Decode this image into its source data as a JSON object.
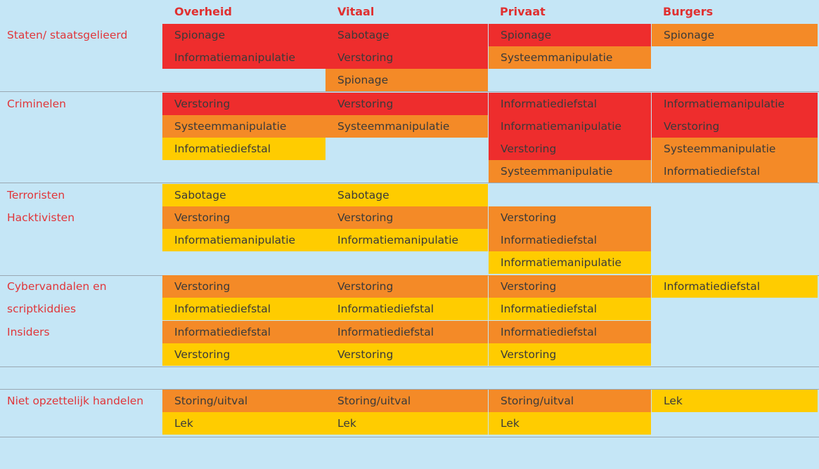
{
  "columns": [
    "Overheid",
    "Vitaal",
    "Privaat",
    "Burgers"
  ],
  "rows": [
    {
      "label": "Staten/ staatsgelieerd",
      "label_lines": [
        "Staten/ staatsgelieerd"
      ],
      "cells": [
        [
          {
            "text": "Spionage",
            "level": "red"
          },
          {
            "text": "Informatiemanipulatie",
            "level": "red"
          }
        ],
        [
          {
            "text": "Sabotage",
            "level": "red"
          },
          {
            "text": "Verstoring",
            "level": "red"
          },
          {
            "text": "Spionage",
            "level": "orange"
          }
        ],
        [
          {
            "text": "Spionage",
            "level": "red"
          },
          {
            "text": "Systeemmanipulatie",
            "level": "orange"
          }
        ],
        [
          {
            "text": "Spionage",
            "level": "orange"
          }
        ]
      ]
    },
    {
      "label": "Criminelen",
      "label_lines": [
        "Criminelen"
      ],
      "cells": [
        [
          {
            "text": "Verstoring",
            "level": "red"
          },
          {
            "text": "Systeemmanipulatie",
            "level": "orange"
          },
          {
            "text": "Informatiediefstal",
            "level": "yellow"
          }
        ],
        [
          {
            "text": "Verstoring",
            "level": "red"
          },
          {
            "text": "Systeemmanipulatie",
            "level": "orange"
          }
        ],
        [
          {
            "text": "Informatiediefstal",
            "level": "red"
          },
          {
            "text": "Informatiemanipulatie",
            "level": "red"
          },
          {
            "text": "Verstoring",
            "level": "red"
          },
          {
            "text": "Systeemmanipulatie",
            "level": "orange"
          }
        ],
        [
          {
            "text": "Informatiemanipulatie",
            "level": "red"
          },
          {
            "text": "Verstoring",
            "level": "red"
          },
          {
            "text": "Systeemmanipulatie",
            "level": "orange"
          },
          {
            "text": "Informatiediefstal",
            "level": "orange"
          }
        ]
      ]
    },
    {
      "label": "Terroristen",
      "label_lines": [
        "Terroristen"
      ],
      "cells": [
        [
          {
            "text": "Sabotage",
            "level": "yellow"
          }
        ],
        [
          {
            "text": "Sabotage",
            "level": "yellow"
          }
        ],
        [],
        []
      ]
    },
    {
      "label": "Hacktivisten",
      "label_lines": [
        "Hacktivisten"
      ],
      "cells": [
        [
          {
            "text": "Verstoring",
            "level": "orange"
          },
          {
            "text": "Informatiemanipulatie",
            "level": "yellow"
          }
        ],
        [
          {
            "text": "Verstoring",
            "level": "orange"
          },
          {
            "text": "Informatiemanipulatie",
            "level": "yellow"
          }
        ],
        [
          {
            "text": "Verstoring",
            "level": "orange"
          },
          {
            "text": "Informatiediefstal",
            "level": "orange"
          },
          {
            "text": "Informatiemanipulatie",
            "level": "yellow"
          }
        ],
        []
      ]
    },
    {
      "label": "Cybervandalen en scriptkiddies",
      "label_lines": [
        "Cybervandalen en",
        "scriptkiddies"
      ],
      "cells": [
        [
          {
            "text": "Verstoring",
            "level": "orange"
          },
          {
            "text": "Informatiediefstal",
            "level": "yellow"
          }
        ],
        [
          {
            "text": "Verstoring",
            "level": "orange"
          },
          {
            "text": "Informatiediefstal",
            "level": "yellow"
          }
        ],
        [
          {
            "text": "Verstoring",
            "level": "orange"
          },
          {
            "text": "Informatiediefstal",
            "level": "yellow"
          }
        ],
        [
          {
            "text": "Informatiediefstal",
            "level": "yellow"
          }
        ]
      ]
    },
    {
      "label": "Insiders",
      "label_lines": [
        "Insiders"
      ],
      "cells": [
        [
          {
            "text": "Informatiediefstal",
            "level": "orange"
          },
          {
            "text": "Verstoring",
            "level": "yellow"
          }
        ],
        [
          {
            "text": "Informatiediefstal",
            "level": "orange"
          },
          {
            "text": "Verstoring",
            "level": "yellow"
          }
        ],
        [
          {
            "text": "Informatiediefstal",
            "level": "orange"
          },
          {
            "text": "Verstoring",
            "level": "yellow"
          }
        ],
        []
      ]
    },
    {
      "label": "Niet opzettelijk handelen",
      "label_lines": [
        "Niet opzettelijk handelen"
      ],
      "cells": [
        [
          {
            "text": "Storing/uitval",
            "level": "orange"
          },
          {
            "text": "Lek",
            "level": "yellow"
          }
        ],
        [
          {
            "text": "Storing/uitval",
            "level": "orange"
          },
          {
            "text": "Lek",
            "level": "yellow"
          }
        ],
        [
          {
            "text": "Storing/uitval",
            "level": "orange"
          },
          {
            "text": "Lek",
            "level": "yellow"
          }
        ],
        [
          {
            "text": "Lek",
            "level": "yellow"
          }
        ]
      ]
    }
  ],
  "colors": {
    "red": "#ee2d2d",
    "orange": "#f48a27",
    "yellow": "#ffcc00",
    "header": "#e03030",
    "background": "#c5e6f6"
  }
}
